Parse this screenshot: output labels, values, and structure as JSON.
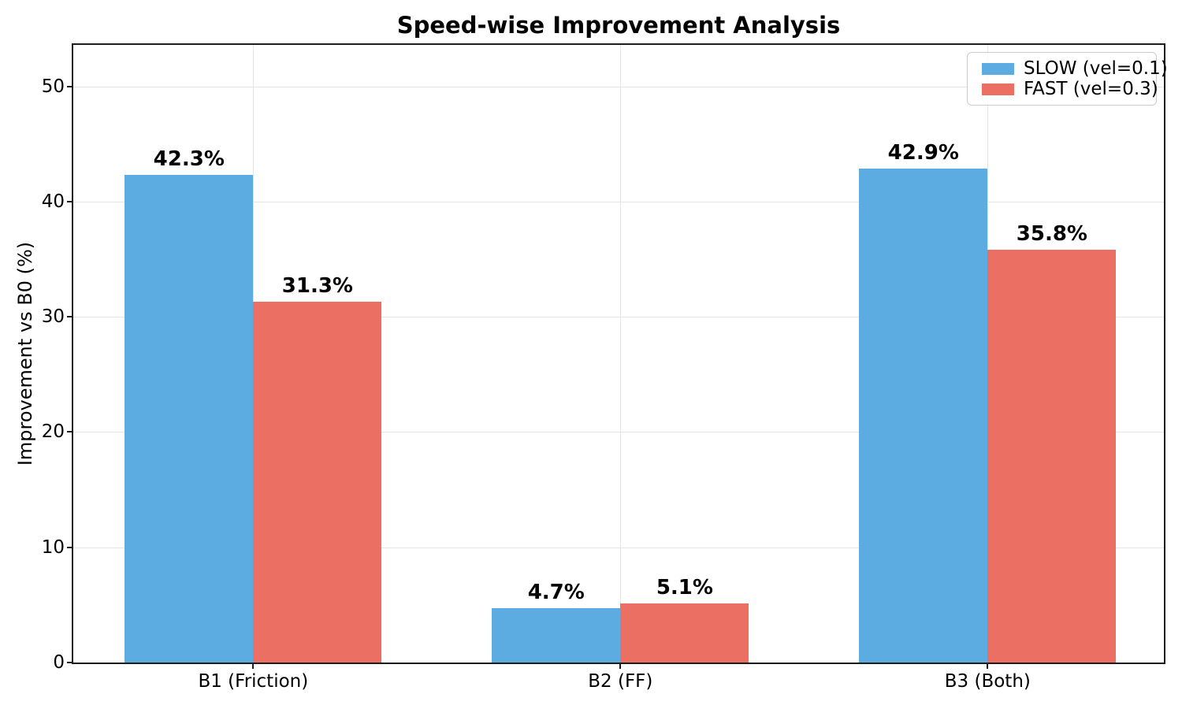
{
  "chart_data": {
    "type": "bar",
    "title": "Speed-wise Improvement Analysis",
    "ylabel": "Improvement vs B0 (%)",
    "xlabel": "",
    "categories": [
      "B1 (Friction)",
      "B2 (FF)",
      "B3 (Both)"
    ],
    "series": [
      {
        "name": "SLOW (vel=0.1)",
        "color": "#5CACE2",
        "values": [
          42.3,
          4.7,
          42.9
        ],
        "labels": [
          "42.3%",
          "4.7%",
          "42.9%"
        ]
      },
      {
        "name": "FAST (vel=0.3)",
        "color": "#EC6F63",
        "values": [
          31.3,
          5.1,
          35.8
        ],
        "labels": [
          "31.3%",
          "5.1%",
          "35.8%"
        ]
      }
    ],
    "yticks": [
      0,
      10,
      20,
      30,
      40,
      50
    ],
    "ylim": [
      0,
      53.6
    ],
    "grid": true,
    "legend_position": "upper right",
    "colors": {
      "grid": "#e5e5e5",
      "spine": "#1c1c1c",
      "text": "#000000"
    }
  }
}
